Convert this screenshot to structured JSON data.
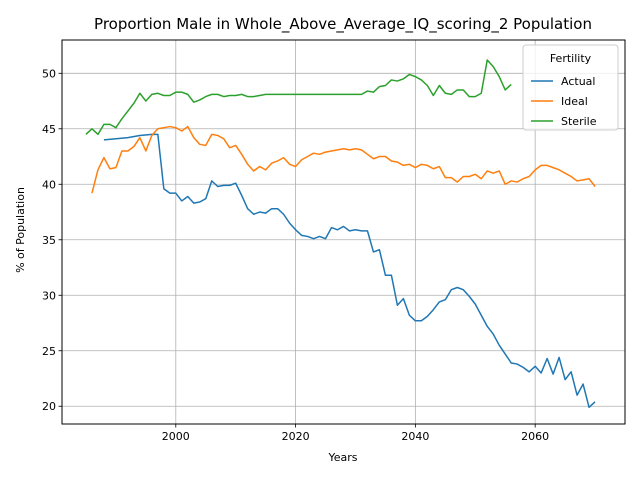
{
  "chart_data": {
    "type": "line",
    "title": "Proportion Male in Whole_Above_Average_IQ_scoring_2 Population",
    "xlabel": "Years",
    "ylabel": "% of Population",
    "xlim": [
      1981,
      2075
    ],
    "ylim": [
      18.4,
      53.0
    ],
    "xticks": [
      2000,
      2020,
      2040,
      2060
    ],
    "yticks": [
      20,
      25,
      30,
      35,
      40,
      45,
      50
    ],
    "grid": true,
    "legend": {
      "title": "Fertility",
      "position": "top-right"
    },
    "series": [
      {
        "name": "Actual",
        "color": "#1f77b4",
        "points": [
          [
            1988,
            44.0
          ],
          [
            1990,
            44.1
          ],
          [
            1992,
            44.2
          ],
          [
            1994,
            44.4
          ],
          [
            1996,
            44.5
          ],
          [
            1997,
            44.5
          ],
          [
            1998,
            39.6
          ],
          [
            1999,
            39.2
          ],
          [
            2000,
            39.2
          ],
          [
            2001,
            38.5
          ],
          [
            2002,
            38.9
          ],
          [
            2003,
            38.3
          ],
          [
            2004,
            38.4
          ],
          [
            2005,
            38.7
          ],
          [
            2006,
            40.3
          ],
          [
            2007,
            39.8
          ],
          [
            2008,
            39.9
          ],
          [
            2009,
            39.9
          ],
          [
            2010,
            40.1
          ],
          [
            2011,
            39.0
          ],
          [
            2012,
            37.8
          ],
          [
            2013,
            37.3
          ],
          [
            2014,
            37.5
          ],
          [
            2015,
            37.4
          ],
          [
            2016,
            37.8
          ],
          [
            2017,
            37.8
          ],
          [
            2018,
            37.3
          ],
          [
            2019,
            36.5
          ],
          [
            2020,
            35.9
          ],
          [
            2021,
            35.4
          ],
          [
            2022,
            35.3
          ],
          [
            2023,
            35.1
          ],
          [
            2024,
            35.3
          ],
          [
            2025,
            35.1
          ],
          [
            2026,
            36.1
          ],
          [
            2027,
            35.9
          ],
          [
            2028,
            36.2
          ],
          [
            2029,
            35.8
          ],
          [
            2030,
            35.9
          ],
          [
            2031,
            35.8
          ],
          [
            2032,
            35.8
          ],
          [
            2033,
            33.9
          ],
          [
            2034,
            34.1
          ],
          [
            2035,
            31.8
          ],
          [
            2036,
            31.8
          ],
          [
            2037,
            29.1
          ],
          [
            2038,
            29.7
          ],
          [
            2039,
            28.2
          ],
          [
            2040,
            27.7
          ],
          [
            2041,
            27.7
          ],
          [
            2042,
            28.1
          ],
          [
            2043,
            28.7
          ],
          [
            2044,
            29.4
          ],
          [
            2045,
            29.6
          ],
          [
            2046,
            30.5
          ],
          [
            2047,
            30.7
          ],
          [
            2048,
            30.5
          ],
          [
            2049,
            29.9
          ],
          [
            2050,
            29.2
          ],
          [
            2051,
            28.2
          ],
          [
            2052,
            27.2
          ],
          [
            2053,
            26.5
          ],
          [
            2054,
            25.5
          ],
          [
            2055,
            24.7
          ],
          [
            2056,
            23.9
          ],
          [
            2057,
            23.8
          ],
          [
            2058,
            23.5
          ],
          [
            2059,
            23.1
          ],
          [
            2060,
            23.6
          ],
          [
            2061,
            23.0
          ],
          [
            2062,
            24.3
          ],
          [
            2063,
            22.9
          ],
          [
            2064,
            24.4
          ],
          [
            2065,
            22.4
          ],
          [
            2066,
            23.1
          ],
          [
            2067,
            21.0
          ],
          [
            2068,
            22.0
          ],
          [
            2069,
            19.9
          ],
          [
            2070,
            20.4
          ]
        ]
      },
      {
        "name": "Ideal",
        "color": "#ff7f0e",
        "points": [
          [
            1986,
            39.2
          ],
          [
            1987,
            41.3
          ],
          [
            1988,
            42.4
          ],
          [
            1989,
            41.4
          ],
          [
            1990,
            41.5
          ],
          [
            1991,
            43.0
          ],
          [
            1992,
            43.0
          ],
          [
            1993,
            43.4
          ],
          [
            1994,
            44.2
          ],
          [
            1995,
            43.0
          ],
          [
            1996,
            44.4
          ],
          [
            1997,
            45.0
          ],
          [
            1998,
            45.1
          ],
          [
            1999,
            45.2
          ],
          [
            2000,
            45.1
          ],
          [
            2001,
            44.8
          ],
          [
            2002,
            45.2
          ],
          [
            2003,
            44.2
          ],
          [
            2004,
            43.6
          ],
          [
            2005,
            43.5
          ],
          [
            2006,
            44.5
          ],
          [
            2007,
            44.4
          ],
          [
            2008,
            44.1
          ],
          [
            2009,
            43.3
          ],
          [
            2010,
            43.5
          ],
          [
            2011,
            42.7
          ],
          [
            2012,
            41.8
          ],
          [
            2013,
            41.2
          ],
          [
            2014,
            41.6
          ],
          [
            2015,
            41.3
          ],
          [
            2016,
            41.9
          ],
          [
            2017,
            42.1
          ],
          [
            2018,
            42.4
          ],
          [
            2019,
            41.8
          ],
          [
            2020,
            41.6
          ],
          [
            2021,
            42.2
          ],
          [
            2022,
            42.5
          ],
          [
            2023,
            42.8
          ],
          [
            2024,
            42.7
          ],
          [
            2025,
            42.9
          ],
          [
            2026,
            43.0
          ],
          [
            2027,
            43.1
          ],
          [
            2028,
            43.2
          ],
          [
            2029,
            43.1
          ],
          [
            2030,
            43.2
          ],
          [
            2031,
            43.1
          ],
          [
            2032,
            42.7
          ],
          [
            2033,
            42.3
          ],
          [
            2034,
            42.5
          ],
          [
            2035,
            42.5
          ],
          [
            2036,
            42.1
          ],
          [
            2037,
            42.0
          ],
          [
            2038,
            41.7
          ],
          [
            2039,
            41.8
          ],
          [
            2040,
            41.5
          ],
          [
            2041,
            41.8
          ],
          [
            2042,
            41.7
          ],
          [
            2043,
            41.4
          ],
          [
            2044,
            41.6
          ],
          [
            2045,
            40.6
          ],
          [
            2046,
            40.6
          ],
          [
            2047,
            40.2
          ],
          [
            2048,
            40.7
          ],
          [
            2049,
            40.7
          ],
          [
            2050,
            40.9
          ],
          [
            2051,
            40.5
          ],
          [
            2052,
            41.2
          ],
          [
            2053,
            41.0
          ],
          [
            2054,
            41.2
          ],
          [
            2055,
            40.0
          ],
          [
            2056,
            40.3
          ],
          [
            2057,
            40.2
          ],
          [
            2058,
            40.5
          ],
          [
            2059,
            40.7
          ],
          [
            2060,
            41.3
          ],
          [
            2061,
            41.7
          ],
          [
            2062,
            41.7
          ],
          [
            2063,
            41.5
          ],
          [
            2064,
            41.3
          ],
          [
            2065,
            41.0
          ],
          [
            2066,
            40.7
          ],
          [
            2067,
            40.3
          ],
          [
            2068,
            40.4
          ],
          [
            2069,
            40.5
          ],
          [
            2070,
            39.8
          ]
        ]
      },
      {
        "name": "Sterile",
        "color": "#2ca02c",
        "points": [
          [
            1985,
            44.5
          ],
          [
            1986,
            45.0
          ],
          [
            1987,
            44.5
          ],
          [
            1988,
            45.4
          ],
          [
            1989,
            45.4
          ],
          [
            1990,
            45.1
          ],
          [
            1991,
            45.9
          ],
          [
            1992,
            46.6
          ],
          [
            1993,
            47.3
          ],
          [
            1994,
            48.2
          ],
          [
            1995,
            47.5
          ],
          [
            1996,
            48.1
          ],
          [
            1997,
            48.2
          ],
          [
            1998,
            48.0
          ],
          [
            1999,
            48.0
          ],
          [
            2000,
            48.3
          ],
          [
            2001,
            48.3
          ],
          [
            2002,
            48.1
          ],
          [
            2003,
            47.4
          ],
          [
            2004,
            47.6
          ],
          [
            2005,
            47.9
          ],
          [
            2006,
            48.1
          ],
          [
            2007,
            48.1
          ],
          [
            2008,
            47.9
          ],
          [
            2009,
            48.0
          ],
          [
            2010,
            48.0
          ],
          [
            2011,
            48.1
          ],
          [
            2012,
            47.9
          ],
          [
            2013,
            47.9
          ],
          [
            2014,
            48.0
          ],
          [
            2015,
            48.1
          ],
          [
            2016,
            48.1
          ],
          [
            2017,
            48.1
          ],
          [
            2018,
            48.1
          ],
          [
            2019,
            48.1
          ],
          [
            2020,
            48.1
          ],
          [
            2021,
            48.1
          ],
          [
            2022,
            48.1
          ],
          [
            2023,
            48.1
          ],
          [
            2024,
            48.1
          ],
          [
            2025,
            48.1
          ],
          [
            2026,
            48.1
          ],
          [
            2027,
            48.1
          ],
          [
            2028,
            48.1
          ],
          [
            2029,
            48.1
          ],
          [
            2030,
            48.1
          ],
          [
            2031,
            48.1
          ],
          [
            2032,
            48.4
          ],
          [
            2033,
            48.3
          ],
          [
            2034,
            48.8
          ],
          [
            2035,
            48.9
          ],
          [
            2036,
            49.4
          ],
          [
            2037,
            49.3
          ],
          [
            2038,
            49.5
          ],
          [
            2039,
            49.9
          ],
          [
            2040,
            49.7
          ],
          [
            2041,
            49.4
          ],
          [
            2042,
            48.9
          ],
          [
            2043,
            48.0
          ],
          [
            2044,
            48.9
          ],
          [
            2045,
            48.2
          ],
          [
            2046,
            48.1
          ],
          [
            2047,
            48.5
          ],
          [
            2048,
            48.5
          ],
          [
            2049,
            47.9
          ],
          [
            2050,
            47.9
          ],
          [
            2051,
            48.2
          ],
          [
            2052,
            51.2
          ],
          [
            2053,
            50.6
          ],
          [
            2054,
            49.7
          ],
          [
            2055,
            48.5
          ],
          [
            2056,
            49.0
          ]
        ]
      }
    ]
  }
}
